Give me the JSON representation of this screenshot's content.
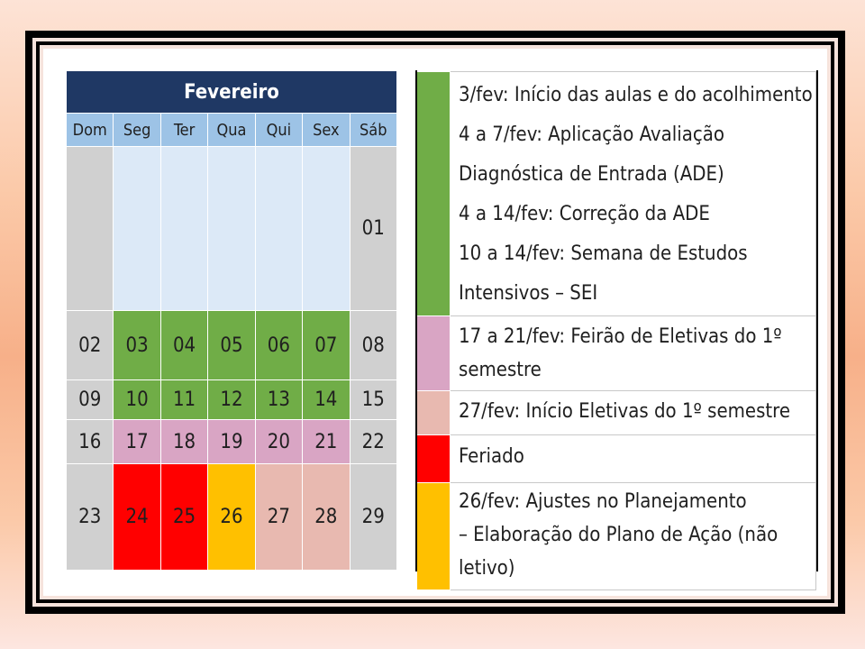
{
  "calendar": {
    "month": "Fevereiro",
    "weekdays": [
      "Dom",
      "Seg",
      "Ter",
      "Qua",
      "Qui",
      "Sex",
      "Sáb"
    ],
    "weeks": [
      [
        "",
        "",
        "",
        "",
        "",
        "",
        "01"
      ],
      [
        "02",
        "03",
        "04",
        "05",
        "06",
        "07",
        "08"
      ],
      [
        "09",
        "10",
        "11",
        "12",
        "13",
        "14",
        "15"
      ],
      [
        "16",
        "17",
        "18",
        "19",
        "20",
        "21",
        "22"
      ],
      [
        "23",
        "24",
        "25",
        "26",
        "27",
        "28",
        "29"
      ]
    ]
  },
  "legend": {
    "green": [
      "3/fev: Início das aulas e do acolhimento",
      "4 a 7/fev: Aplicação Avaliação",
      "Diagnóstica de Entrada (ADE)",
      "4 a 14/fev: Correção da ADE",
      "10 a 14/fev: Semana de Estudos",
      "Intensivos – SEI"
    ],
    "pink": [
      "17 a 21/fev: Feirão de Eletivas do 1º",
      "semestre"
    ],
    "salmon": [
      "27/fev: Início Eletivas do 1º semestre"
    ],
    "red": [
      "Feriado"
    ],
    "yellow": [
      "26/fev: Ajustes no Planejamento",
      "– Elaboração do Plano de Ação (não",
      "letivo)"
    ]
  },
  "colors": {
    "header": "#1f3864",
    "weekday": "#9dc3e6",
    "green": "#70ad47",
    "pink": "#d9a5c4",
    "salmon": "#e8b9b0",
    "red": "#ff0000",
    "yellow": "#ffc000",
    "weekend": "#d0d0d0"
  }
}
